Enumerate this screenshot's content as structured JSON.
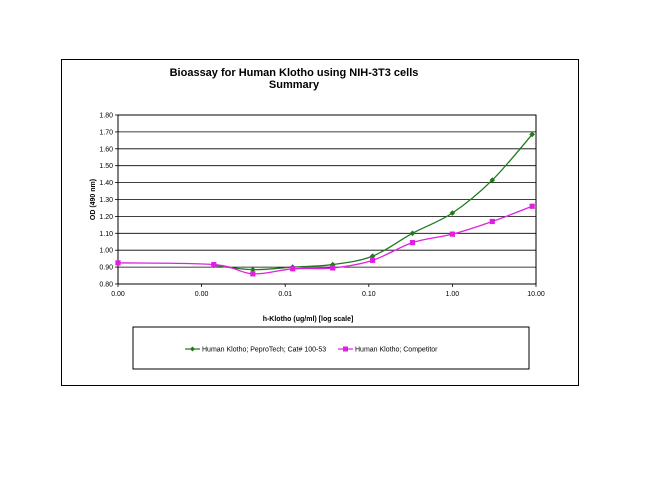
{
  "chart_data": {
    "type": "line",
    "title": "Bioassay for Human Klotho using NIH-3T3 cells",
    "subtitle": "Summary",
    "xlabel": "h-Klotho (ug/ml) [log scale]",
    "ylabel": "OD (490 nm)",
    "x_scale": "log",
    "x_tick_labels": [
      "0.00",
      "0.00",
      "0.01",
      "0.10",
      "1.00",
      "10.00"
    ],
    "y_tick_labels": [
      "0.80",
      "0.90",
      "1.00",
      "1.10",
      "1.20",
      "1.30",
      "1.40",
      "1.50",
      "1.60",
      "1.70",
      "1.80"
    ],
    "ylim": [
      0.8,
      1.8
    ],
    "grid": "horizontal",
    "legend_position": "bottom",
    "series": [
      {
        "name": "Human Klotho; PeproTech; Cat# 100-53",
        "color": "#1f7a1f",
        "marker": "diamond",
        "x": [
          0.0014,
          0.0041,
          0.0123,
          0.037,
          0.111,
          0.333,
          1.0,
          3.0,
          9.0
        ],
        "y": [
          0.91,
          0.885,
          0.9,
          0.915,
          0.965,
          1.1,
          1.22,
          1.415,
          1.685
        ]
      },
      {
        "name": "Human Klotho; Competitor",
        "color": "#e020e0",
        "marker": "square",
        "x": [
          0.0001,
          0.0014,
          0.0041,
          0.0123,
          0.037,
          0.111,
          0.333,
          1.0,
          3.0,
          9.0
        ],
        "y": [
          0.925,
          0.915,
          0.86,
          0.89,
          0.895,
          0.94,
          1.045,
          1.095,
          1.17,
          1.26
        ]
      }
    ]
  }
}
